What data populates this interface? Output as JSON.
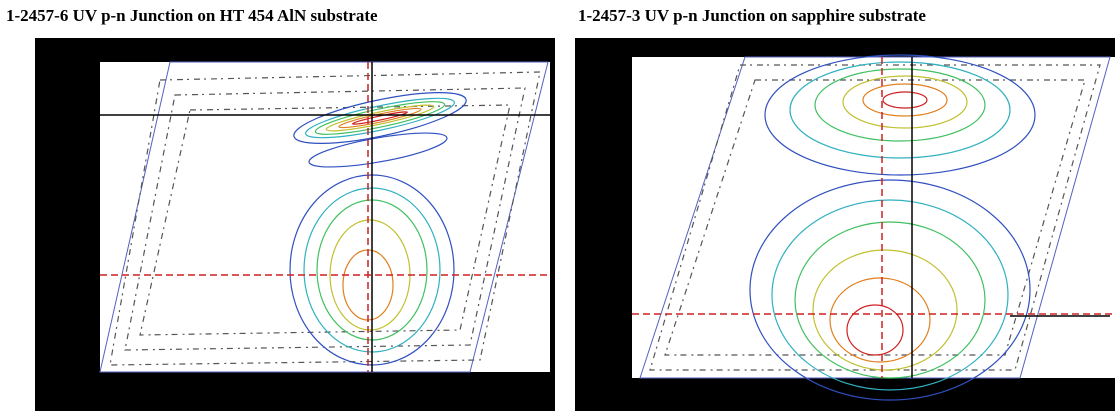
{
  "panels": [
    {
      "title": "1-2457-6 UV p-n Junction on HT 454 AlN substrate"
    },
    {
      "title": "1-2457-3 UV p-n Junction on sapphire substrate"
    }
  ]
}
